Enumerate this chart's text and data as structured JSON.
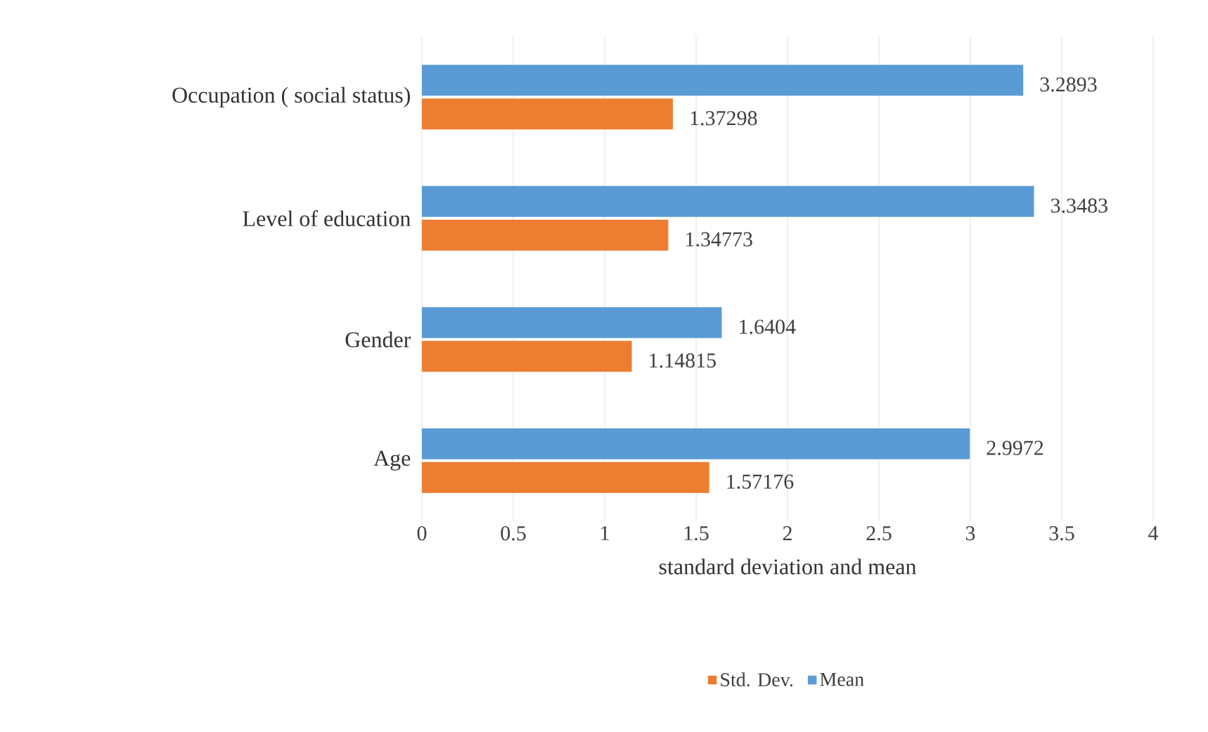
{
  "chart_data": {
    "type": "bar",
    "orientation": "horizontal",
    "xlabel": "standard deviation and  mean",
    "categories": [
      "Occupation ( social status)",
      "Level of education",
      "Gender",
      "Age"
    ],
    "series": [
      {
        "name": "Std. Dev.",
        "color": "#ed7d31",
        "values": [
          1.37298,
          1.34773,
          1.14815,
          1.57176
        ]
      },
      {
        "name": "Mean",
        "color": "#5b9bd5",
        "values": [
          3.2893,
          3.3483,
          1.6404,
          2.9972
        ]
      }
    ],
    "xlim": [
      0,
      4
    ],
    "xticks": [
      0,
      0.5,
      1,
      1.5,
      2,
      2.5,
      3,
      3.5,
      4
    ],
    "grid": "x",
    "legend": "bottom",
    "data_labels": true
  }
}
